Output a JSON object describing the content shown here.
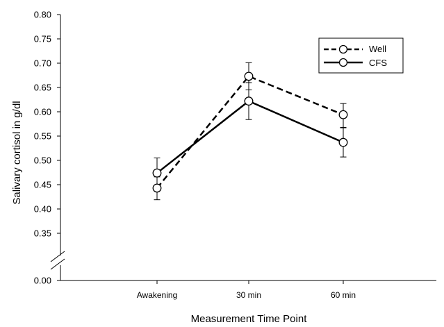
{
  "chart_data": {
    "type": "line",
    "title": "",
    "xlabel": "Measurement Time Point",
    "ylabel": "Salivary cortisol in  g/dl",
    "categories": [
      "Awakening",
      "30 min",
      "60 min"
    ],
    "y_ticks": [
      "0.00",
      "0.35",
      "0.40",
      "0.45",
      "0.50",
      "0.55",
      "0.60",
      "0.65",
      "0.70",
      "0.75",
      "0.80"
    ],
    "ylim": [
      0.3,
      0.8
    ],
    "axis_break": true,
    "grid": false,
    "legend_position": "top-right",
    "series": [
      {
        "name": "Well",
        "style": "dashed",
        "values": [
          0.443,
          0.673,
          0.594
        ],
        "err_low": [
          0.419,
          0.645,
          0.568
        ],
        "err_high": [
          0.466,
          0.701,
          0.617
        ]
      },
      {
        "name": "CFS",
        "style": "solid",
        "values": [
          0.474,
          0.622,
          0.537
        ],
        "err_low": [
          0.444,
          0.584,
          0.507
        ],
        "err_high": [
          0.505,
          0.66,
          0.567
        ]
      }
    ],
    "colors": {
      "line": "#000000",
      "marker_fill": "#ffffff"
    }
  }
}
